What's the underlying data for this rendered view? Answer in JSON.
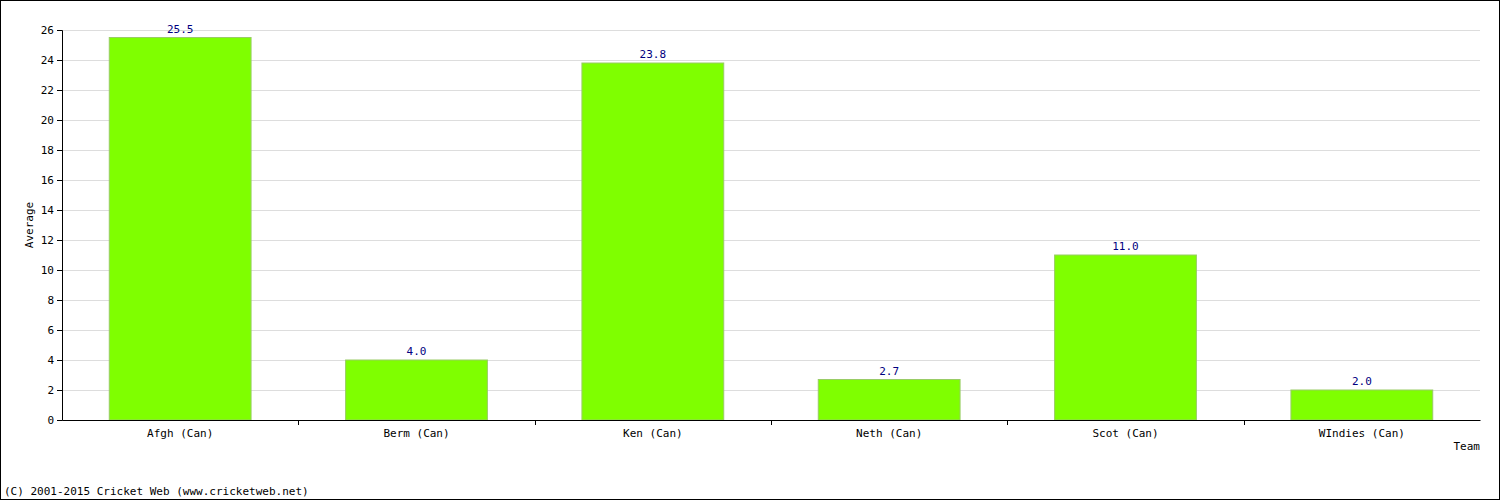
{
  "chart_data": {
    "type": "bar",
    "categories": [
      "Afgh (Can)",
      "Berm (Can)",
      "Ken (Can)",
      "Neth (Can)",
      "Scot (Can)",
      "WIndies (Can)"
    ],
    "values": [
      25.5,
      4.0,
      23.8,
      2.7,
      11.0,
      2.0
    ],
    "value_labels": [
      "25.5",
      "4.0",
      "23.8",
      "2.7",
      "11.0",
      "2.0"
    ],
    "color": "#7fff00",
    "x_label": "Team",
    "y_label": "Average",
    "annotations": [
      "(C) 2001-2015 Cricket Web (www.cricketweb.net)"
    ],
    "ylim": [
      0,
      26
    ],
    "yticks": [
      0,
      2,
      4,
      6,
      8,
      10,
      12,
      14,
      16,
      18,
      20,
      22,
      24,
      26
    ],
    "grid": true,
    "data_labels": true
  }
}
